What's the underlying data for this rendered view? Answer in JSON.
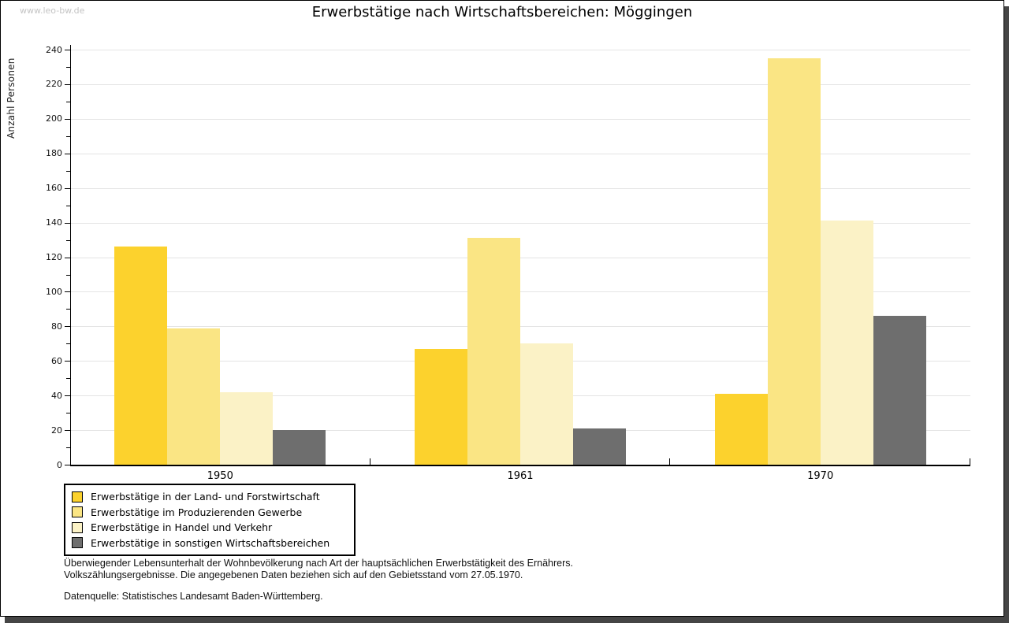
{
  "watermark": "www.leo-bw.de",
  "title": "Erwerbstätige nach Wirtschaftsbereichen: Möggingen",
  "chart_data": {
    "type": "bar",
    "title": "Erwerbstätige nach Wirtschaftsbereichen: Möggingen",
    "xlabel": "",
    "ylabel": "Anzahl Personen",
    "categories": [
      "1950",
      "1961",
      "1970"
    ],
    "series": [
      {
        "name": "Erwerbstätige in der Land- und Forstwirtschaft",
        "color": "#fcd22d",
        "values": [
          126,
          67,
          41
        ]
      },
      {
        "name": "Erwerbstätige im Produzierenden Gewerbe",
        "color": "#fae584",
        "values": [
          79,
          131,
          235
        ]
      },
      {
        "name": "Erwerbstätige in Handel und Verkehr",
        "color": "#fbf2c6",
        "values": [
          42,
          70,
          141
        ]
      },
      {
        "name": "Erwerbstätige in sonstigen Wirtschaftsbereichen",
        "color": "#6e6e6e",
        "values": [
          20,
          21,
          86
        ]
      }
    ],
    "ylim": [
      0,
      240
    ],
    "ytick_step": 20,
    "ytick_minor_step": 10,
    "grid": true,
    "legend_position": "bottom-left",
    "colors": {
      "gridline": "#e4e4e4",
      "axis": "#000000",
      "shadow": "#454545"
    }
  },
  "footer": {
    "line1": "Überwiegender Lebensunterhalt der Wohnbevölkerung nach Art der hauptsächlichen Erwerbstätigkeit des Ernährers.",
    "line2": "Volkszählungsergebnisse. Die angegebenen Daten beziehen sich auf den Gebietsstand vom 27.05.1970.",
    "source": "Datenquelle: Statistisches Landesamt Baden-Württemberg."
  }
}
